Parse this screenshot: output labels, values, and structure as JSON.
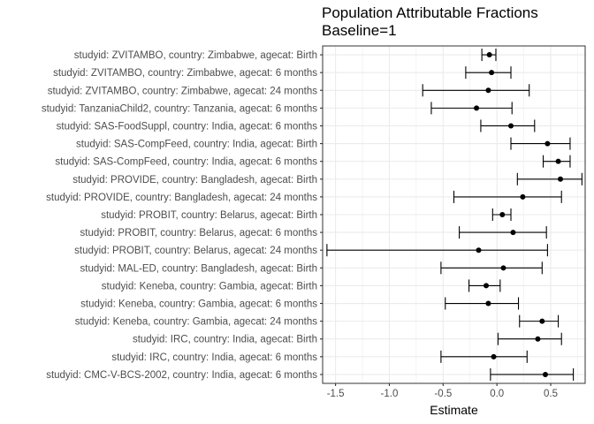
{
  "chart_data": {
    "type": "errorbar",
    "title": "Population Attributable Fractions",
    "subtitle": "Baseline=1",
    "xlabel": "Estimate",
    "ylabel": "",
    "xlim": [
      -1.62,
      0.82
    ],
    "x_ticks": [
      -1.5,
      -1.0,
      -0.5,
      0.0,
      0.5
    ],
    "x_tick_labels": [
      "-1.5",
      "-1.0",
      "-0.5",
      "0.0",
      "0.5"
    ],
    "grid": true,
    "legend": "none",
    "colors": {
      "point": "#000000",
      "grid": "#ebebeb",
      "panel_border": "#333333",
      "axis_text": "#4d4d4d"
    },
    "categories": [
      "studyid: ZVITAMBO, country: Zimbabwe, agecat: Birth",
      "studyid: ZVITAMBO, country: Zimbabwe, agecat: 6 months",
      "studyid: ZVITAMBO, country: Zimbabwe, agecat: 24 months",
      "studyid: TanzaniaChild2, country: Tanzania, agecat: 6 months",
      "studyid: SAS-FoodSuppl, country: India, agecat: 6 months",
      "studyid: SAS-CompFeed, country: India, agecat: Birth",
      "studyid: SAS-CompFeed, country: India, agecat: 6 months",
      "studyid: PROVIDE, country: Bangladesh, agecat: Birth",
      "studyid: PROVIDE, country: Bangladesh, agecat: 24 months",
      "studyid: PROBIT, country: Belarus, agecat: Birth",
      "studyid: PROBIT, country: Belarus, agecat: 6 months",
      "studyid: PROBIT, country: Belarus, agecat: 24 months",
      "studyid: MAL-ED, country: Bangladesh, agecat: Birth",
      "studyid: Keneba, country: Gambia, agecat: Birth",
      "studyid: Keneba, country: Gambia, agecat: 6 months",
      "studyid: Keneba, country: Gambia, agecat: 24 months",
      "studyid: IRC, country: India, agecat: Birth",
      "studyid: IRC, country: India, agecat: 6 months",
      "studyid: CMC-V-BCS-2002, country: India, agecat: 6 months"
    ],
    "estimate": [
      -0.07,
      -0.05,
      -0.08,
      -0.19,
      0.13,
      0.47,
      0.57,
      0.59,
      0.24,
      0.05,
      0.15,
      -0.17,
      0.06,
      -0.1,
      -0.08,
      0.42,
      0.38,
      -0.03,
      0.45
    ],
    "lower": [
      -0.14,
      -0.29,
      -0.69,
      -0.61,
      -0.15,
      0.13,
      0.43,
      0.19,
      -0.4,
      -0.04,
      -0.35,
      -1.58,
      -0.52,
      -0.26,
      -0.48,
      0.21,
      0.01,
      -0.52,
      -0.06
    ],
    "upper": [
      -0.01,
      0.13,
      0.3,
      0.14,
      0.35,
      0.68,
      0.68,
      0.79,
      0.6,
      0.13,
      0.46,
      0.47,
      0.42,
      0.03,
      0.2,
      0.57,
      0.6,
      0.28,
      0.71
    ]
  }
}
